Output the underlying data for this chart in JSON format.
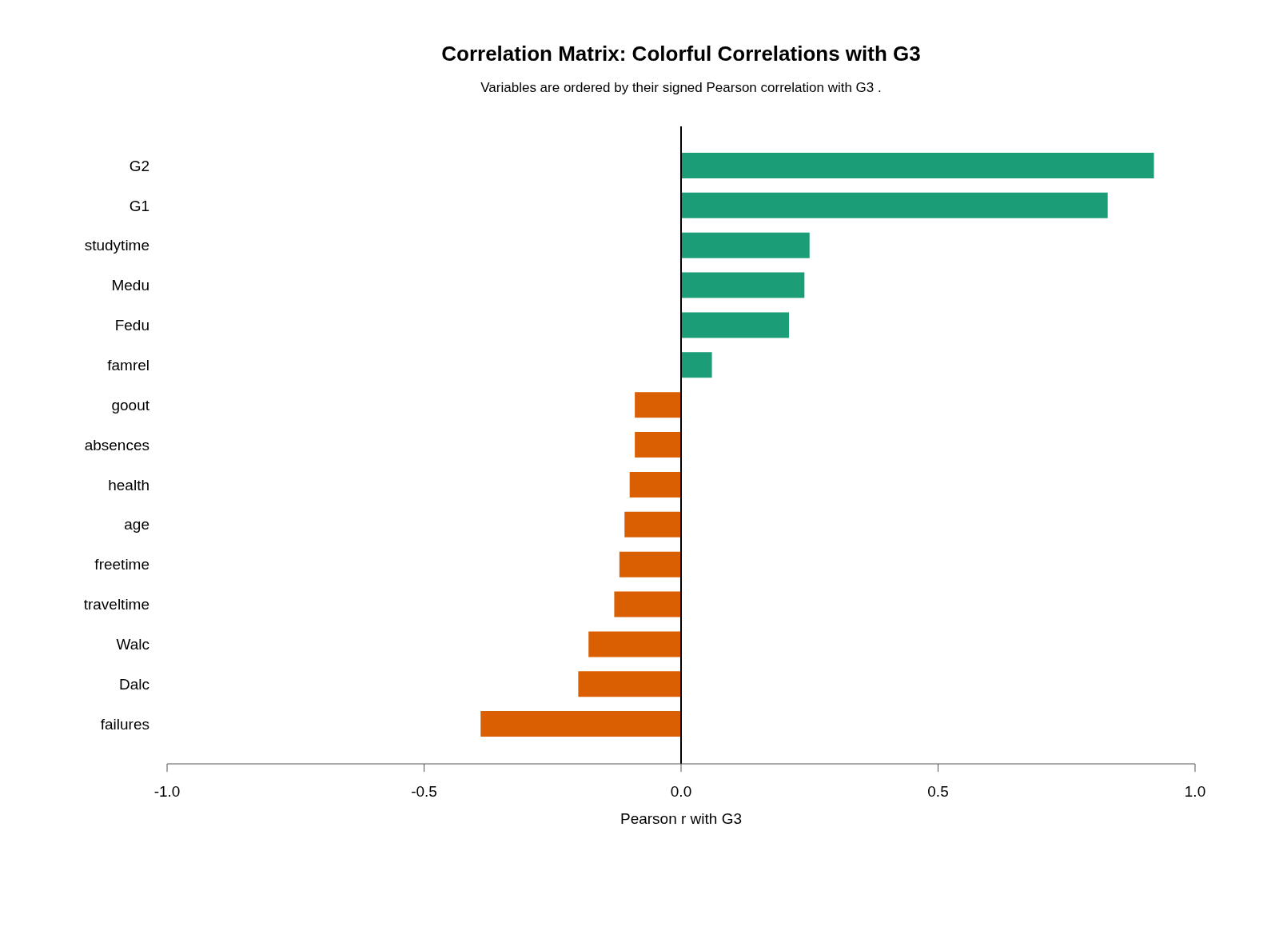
{
  "chart_data": {
    "type": "bar",
    "orientation": "horizontal",
    "title": "Correlation Matrix: Colorful Correlations with G3",
    "subtitle": "Variables are ordered by their signed Pearson correlation with G3 .",
    "xlabel": "Pearson r with G3",
    "categories": [
      "G2",
      "G1",
      "studytime",
      "Medu",
      "Fedu",
      "famrel",
      "goout",
      "absences",
      "health",
      "age",
      "freetime",
      "traveltime",
      "Walc",
      "Dalc",
      "failures"
    ],
    "values": [
      0.92,
      0.83,
      0.25,
      0.24,
      0.21,
      0.06,
      -0.09,
      -0.09,
      -0.1,
      -0.11,
      -0.12,
      -0.13,
      -0.18,
      -0.2,
      -0.39
    ],
    "colors": [
      "#1b9e77",
      "#1b9e77",
      "#1b9e77",
      "#1b9e77",
      "#1b9e77",
      "#1b9e77",
      "#d95f02",
      "#d95f02",
      "#d95f02",
      "#d95f02",
      "#d95f02",
      "#d95f02",
      "#d95f02",
      "#d95f02",
      "#d95f02"
    ],
    "xlim": [
      -1,
      1
    ],
    "xticks": [
      {
        "value": -1,
        "label": "-1.0"
      },
      -0.5,
      {
        "value": 0,
        "label": "0.0"
      },
      0.5,
      {
        "value": 1,
        "label": "1.0"
      }
    ],
    "ref_lines": [
      {
        "axis": "x",
        "value": 0,
        "color": "#000000"
      }
    ],
    "grid": false,
    "legend": false
  }
}
